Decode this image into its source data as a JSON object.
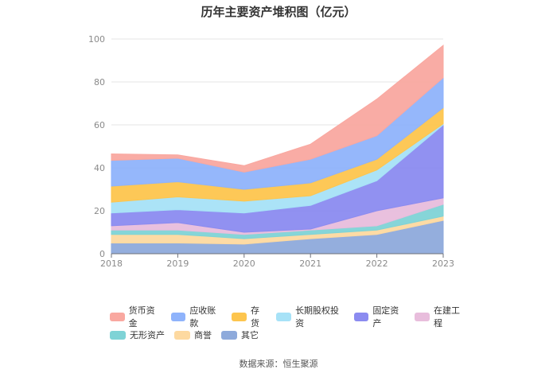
{
  "chart_data": {
    "type": "area",
    "stacked": true,
    "title": "历年主要资产堆积图（亿元）",
    "categories": [
      "2018",
      "2019",
      "2020",
      "2021",
      "2022",
      "2023"
    ],
    "ylim": [
      0,
      100
    ],
    "yticks": [
      "0",
      "20",
      "40",
      "60",
      "80",
      "100"
    ],
    "grid": true,
    "legend_position": "bottom",
    "series": [
      {
        "name": "其它",
        "color": "#8eaadb",
        "values": [
          5,
          5,
          4.5,
          7,
          9,
          15.5
        ]
      },
      {
        "name": "商誉",
        "color": "#fdd9a0",
        "values": [
          4,
          4,
          2.5,
          2,
          2,
          2
        ]
      },
      {
        "name": "无形资产",
        "color": "#7fd3d6",
        "values": [
          2,
          2,
          2,
          2,
          2,
          5.5
        ]
      },
      {
        "name": "在建工程",
        "color": "#e8bddc",
        "values": [
          2,
          3.5,
          1,
          0.5,
          7,
          3
        ]
      },
      {
        "name": "固定资产",
        "color": "#8b8bf0",
        "values": [
          6,
          6,
          9,
          11,
          14,
          34
        ]
      },
      {
        "name": "长期股权投资",
        "color": "#a7e2f7",
        "values": [
          5,
          6,
          5.5,
          4.5,
          5,
          0.5
        ]
      },
      {
        "name": "存货",
        "color": "#fdc54e",
        "values": [
          7.5,
          7,
          5.5,
          6,
          5,
          7.5
        ]
      },
      {
        "name": "应收账款",
        "color": "#8fb3fb",
        "values": [
          12,
          11,
          8,
          11,
          11,
          14
        ]
      },
      {
        "name": "货币资金",
        "color": "#f9a8a0",
        "values": [
          3,
          1.5,
          3,
          7,
          17,
          15
        ]
      }
    ]
  },
  "legend": {
    "rows": [
      [
        {
          "name": "货币资金",
          "color": "#f9a8a0"
        },
        {
          "name": "应收账款",
          "color": "#8fb3fb"
        },
        {
          "name": "存货",
          "color": "#fdc54e"
        },
        {
          "name": "长期股权投资",
          "color": "#a7e2f7"
        },
        {
          "name": "固定资产",
          "color": "#8b8bf0"
        },
        {
          "name": "在建工程",
          "color": "#e8bddc"
        }
      ],
      [
        {
          "name": "无形资产",
          "color": "#7fd3d6"
        },
        {
          "name": "商誉",
          "color": "#fdd9a0"
        },
        {
          "name": "其它",
          "color": "#8eaadb"
        }
      ]
    ]
  },
  "source": "数据来源：恒生聚源"
}
